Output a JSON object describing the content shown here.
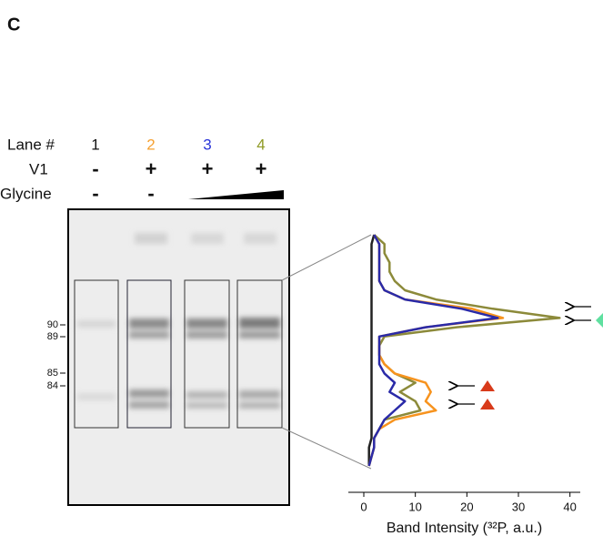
{
  "panel_label": "C",
  "row_labels": {
    "lane": "Lane #",
    "v1": "V1",
    "glycine": "Glycine"
  },
  "lanes": [
    {
      "number": "1",
      "color": "#111111",
      "v1": "-",
      "glycine": "-"
    },
    {
      "number": "2",
      "color": "#f5a030",
      "v1": "+",
      "glycine": "-"
    },
    {
      "number": "3",
      "color": "#2a35d8",
      "v1": "+"
    },
    {
      "number": "4",
      "color": "#8f9a25",
      "v1": "+"
    }
  ],
  "markers": [
    "90",
    "89",
    "85",
    "84"
  ],
  "chart_data": {
    "type": "line",
    "xlabel": "Band Intensity (³²P, a.u.)",
    "xlim": [
      -3,
      42
    ],
    "xticks": [
      0,
      10,
      20,
      30,
      40
    ],
    "series": [
      {
        "color": "#222222",
        "values": [
          2,
          1.5,
          1.5,
          1.5,
          1.5,
          1.5,
          1.5,
          1.5,
          1.5,
          1.5,
          1.5,
          1.5,
          1.5,
          1.5,
          1.5,
          1.5,
          1.5,
          1.5,
          1.5,
          1.5,
          1.5,
          1.5,
          1.5,
          1,
          1,
          1
        ]
      },
      {
        "color": "#8c8a3a",
        "values": [
          2,
          4,
          4,
          5,
          5,
          6,
          8,
          14,
          25,
          38,
          18,
          4,
          3,
          3,
          4,
          6,
          10,
          7,
          10,
          11,
          4,
          3,
          2,
          2,
          1.5,
          1
        ]
      },
      {
        "color": "#f7931e",
        "values": [
          2,
          3,
          3,
          3,
          3,
          3,
          4,
          8,
          21,
          27,
          12,
          3,
          3,
          3,
          4,
          6,
          12,
          13,
          12,
          14,
          6,
          3,
          2,
          2,
          1.5,
          1
        ]
      },
      {
        "color": "#2a2aa8",
        "values": [
          2,
          3,
          3,
          3,
          3,
          3,
          4,
          8,
          19,
          26,
          12,
          3,
          3,
          3,
          3,
          4,
          6,
          5,
          8,
          6,
          4,
          3,
          2,
          2,
          1.5,
          1
        ]
      }
    ]
  }
}
